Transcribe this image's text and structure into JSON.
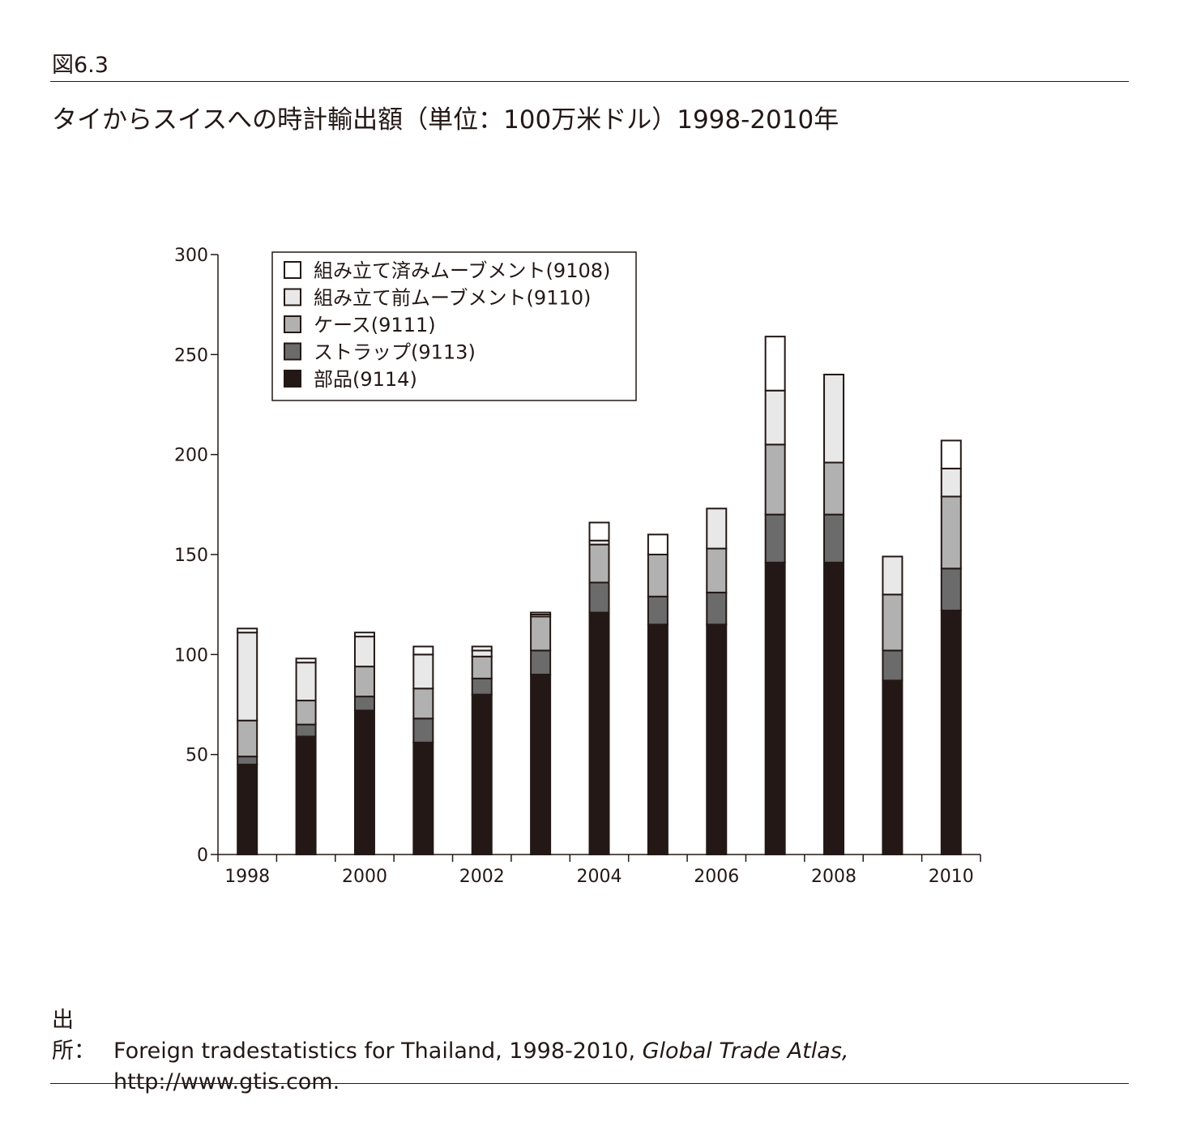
{
  "figure_label": "図6.3",
  "title": "タイからスイスへの時計輸出額（単位：100万米ドル）1998-2010年",
  "source": {
    "label": "出所：",
    "text_plain": "Foreign tradestatistics for Thailand, 1998-2010, ",
    "text_italic": "Global Trade Atlas,",
    "url": "http://www.gtis.com."
  },
  "chart_data": {
    "type": "bar",
    "stacked": true,
    "categories": [
      "1998",
      "1999",
      "2000",
      "2001",
      "2002",
      "2003",
      "2004",
      "2005",
      "2006",
      "2007",
      "2008",
      "2009",
      "2010"
    ],
    "x_tick_labels": [
      "1998",
      "",
      "2000",
      "",
      "2002",
      "",
      "2004",
      "",
      "2006",
      "",
      "2008",
      "",
      "2010"
    ],
    "ylim": [
      0,
      300
    ],
    "yticks": [
      0,
      50,
      100,
      150,
      200,
      250,
      300
    ],
    "xlabel": "",
    "ylabel": "",
    "legend_position": "top-left",
    "series": [
      {
        "name": "部品(9114)",
        "color": "#231815",
        "values": [
          45,
          59,
          72,
          56,
          80,
          90,
          121,
          115,
          115,
          146,
          146,
          87,
          122
        ]
      },
      {
        "name": "ストラップ(9113)",
        "color": "#6b6b6b",
        "values": [
          4,
          6,
          7,
          12,
          8,
          12,
          15,
          14,
          16,
          24,
          24,
          15,
          21
        ]
      },
      {
        "name": "ケース(9111)",
        "color": "#b1b1b1",
        "values": [
          18,
          12,
          15,
          15,
          11,
          17,
          19,
          21,
          22,
          35,
          26,
          28,
          36
        ]
      },
      {
        "name": "組み立て前ムーブメント(9110)",
        "color": "#e8e8e8",
        "values": [
          44,
          19,
          15,
          17,
          3,
          1,
          2,
          0,
          20,
          27,
          44,
          19,
          14
        ]
      },
      {
        "name": "組み立て済みムーブメント(9108)",
        "color": "#ffffff",
        "values": [
          2,
          2,
          2,
          4,
          2,
          1,
          9,
          10,
          0,
          27,
          0,
          0,
          14
        ]
      }
    ],
    "legend_order": [
      "組み立て済みムーブメント(9108)",
      "組み立て前ムーブメント(9110)",
      "ケース(9111)",
      "ストラップ(9113)",
      "部品(9114)"
    ]
  }
}
